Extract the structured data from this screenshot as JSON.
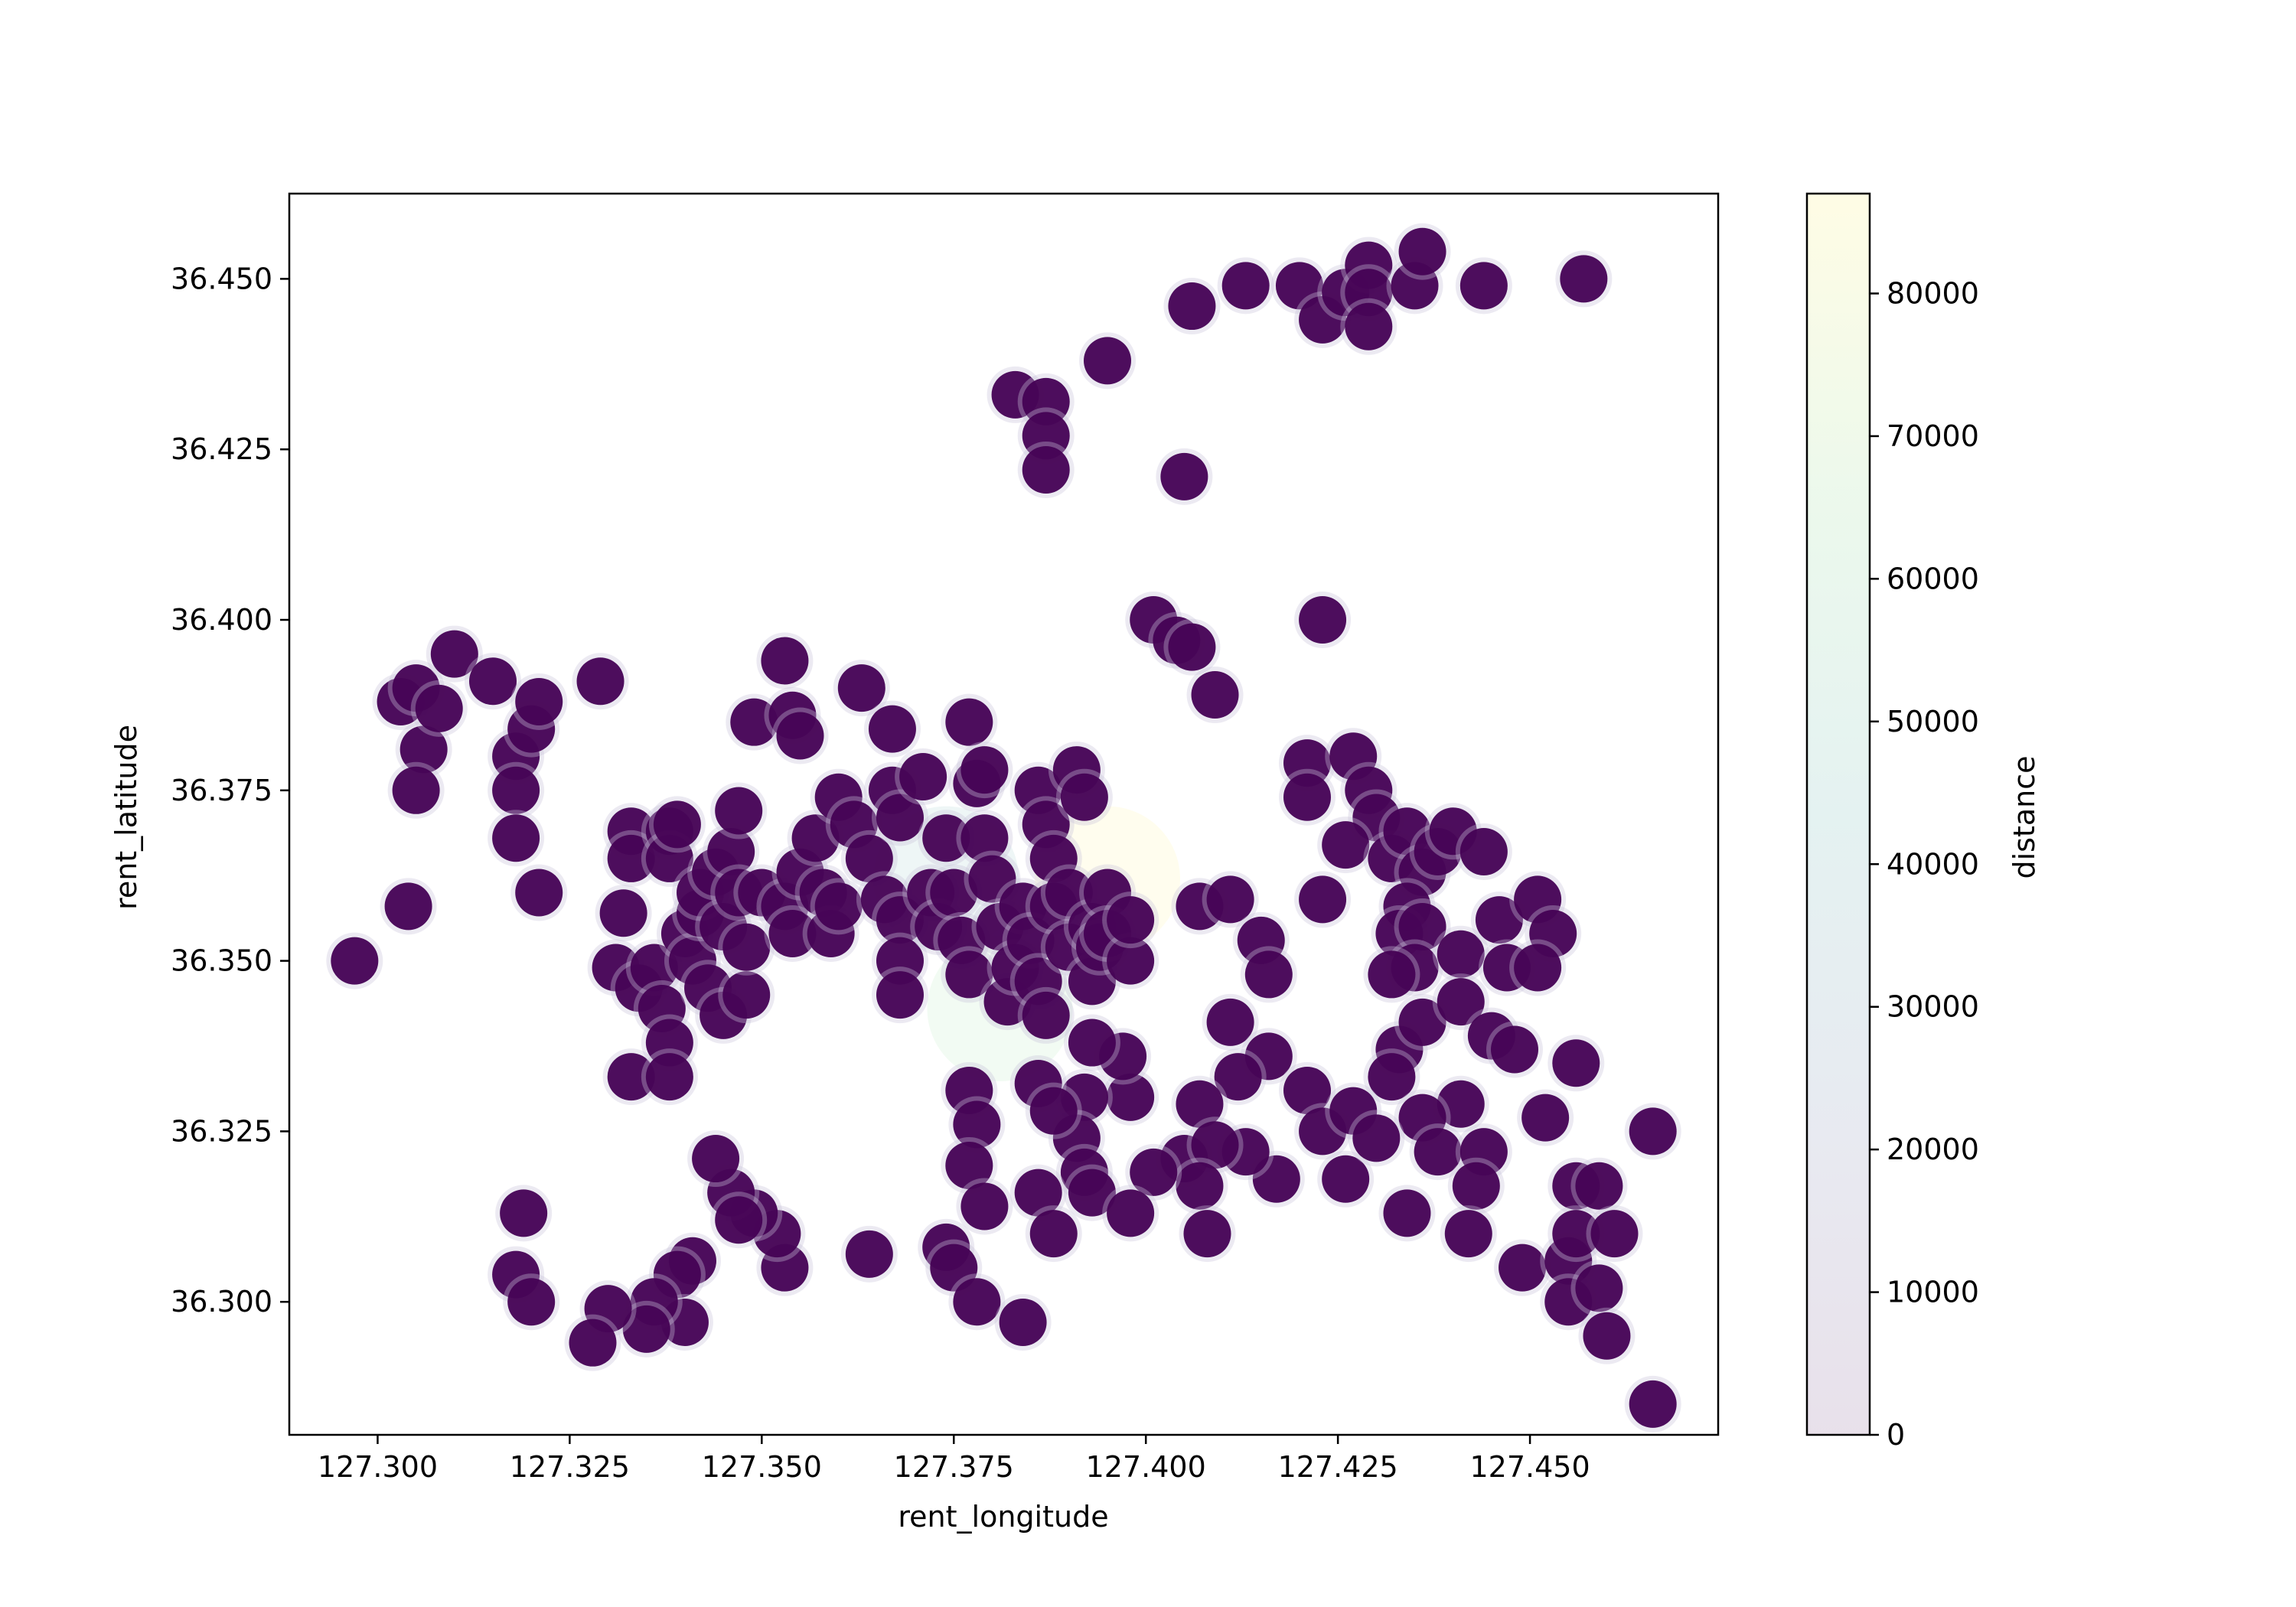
{
  "chart_data": {
    "type": "scatter",
    "title": "",
    "xlabel": "rent_longitude",
    "ylabel": "rent_latitude",
    "xlim": [
      127.2885,
      127.4745
    ],
    "ylim": [
      36.2805,
      36.4625
    ],
    "x_ticks": [
      "127.300",
      "127.325",
      "127.350",
      "127.375",
      "127.400",
      "127.425",
      "127.450"
    ],
    "y_ticks": [
      "36.300",
      "36.325",
      "36.350",
      "36.375",
      "36.400",
      "36.425",
      "36.450"
    ],
    "grid": false,
    "legend": "none",
    "marker_color": "#440154",
    "colorbar": {
      "label": "distance",
      "min": 0,
      "max": 87000,
      "ticks": [
        "0",
        "10000",
        "20000",
        "30000",
        "40000",
        "50000",
        "60000",
        "70000",
        "80000"
      ],
      "colors": [
        "#440154",
        "#3b528b",
        "#21918c",
        "#5ec962",
        "#fde725"
      ],
      "alpha": 0.1
    },
    "faint_markers": [
      {
        "x": 127.395,
        "y": 36.362,
        "distance": 86000
      },
      {
        "x": 127.374,
        "y": 36.362,
        "distance": 45000
      },
      {
        "x": 127.381,
        "y": 36.343,
        "distance": 33000
      }
    ],
    "points": [
      [
        127.297,
        36.35
      ],
      [
        127.304,
        36.358
      ],
      [
        127.303,
        36.388
      ],
      [
        127.305,
        36.39
      ],
      [
        127.306,
        36.381
      ],
      [
        127.305,
        36.375
      ],
      [
        127.308,
        36.387
      ],
      [
        127.31,
        36.395
      ],
      [
        127.315,
        36.391
      ],
      [
        127.318,
        36.38
      ],
      [
        127.318,
        36.375
      ],
      [
        127.318,
        36.368
      ],
      [
        127.32,
        36.384
      ],
      [
        127.321,
        36.388
      ],
      [
        127.321,
        36.36
      ],
      [
        127.319,
        36.313
      ],
      [
        127.318,
        36.304
      ],
      [
        127.32,
        36.3
      ],
      [
        127.329,
        36.391
      ],
      [
        127.332,
        36.357
      ],
      [
        127.331,
        36.349
      ],
      [
        127.333,
        36.369
      ],
      [
        127.333,
        36.365
      ],
      [
        127.333,
        36.333
      ],
      [
        127.334,
        36.346
      ],
      [
        127.336,
        36.349
      ],
      [
        127.337,
        36.343
      ],
      [
        127.338,
        36.369
      ],
      [
        127.338,
        36.365
      ],
      [
        127.339,
        36.37
      ],
      [
        127.338,
        36.338
      ],
      [
        127.338,
        36.333
      ],
      [
        127.34,
        36.354
      ],
      [
        127.341,
        36.35
      ],
      [
        127.342,
        36.357
      ],
      [
        127.342,
        36.36
      ],
      [
        127.343,
        36.346
      ],
      [
        127.344,
        36.363
      ],
      [
        127.345,
        36.342
      ],
      [
        127.345,
        36.355
      ],
      [
        127.346,
        36.366
      ],
      [
        127.347,
        36.36
      ],
      [
        127.348,
        36.345
      ],
      [
        127.348,
        36.352
      ],
      [
        127.347,
        36.372
      ],
      [
        127.349,
        36.385
      ],
      [
        127.35,
        36.36
      ],
      [
        127.353,
        36.394
      ],
      [
        127.354,
        36.386
      ],
      [
        127.355,
        36.383
      ],
      [
        127.353,
        36.358
      ],
      [
        127.354,
        36.354
      ],
      [
        127.355,
        36.363
      ],
      [
        127.357,
        36.368
      ],
      [
        127.358,
        36.36
      ],
      [
        127.359,
        36.354
      ],
      [
        127.36,
        36.374
      ],
      [
        127.36,
        36.358
      ],
      [
        127.362,
        36.37
      ],
      [
        127.363,
        36.39
      ],
      [
        127.364,
        36.365
      ],
      [
        127.366,
        36.359
      ],
      [
        127.367,
        36.384
      ],
      [
        127.367,
        36.375
      ],
      [
        127.368,
        36.371
      ],
      [
        127.368,
        36.356
      ],
      [
        127.368,
        36.35
      ],
      [
        127.368,
        36.345
      ],
      [
        127.371,
        36.377
      ],
      [
        127.372,
        36.36
      ],
      [
        127.373,
        36.355
      ],
      [
        127.374,
        36.368
      ],
      [
        127.375,
        36.36
      ],
      [
        127.376,
        36.353
      ],
      [
        127.377,
        36.348
      ],
      [
        127.377,
        36.385
      ],
      [
        127.378,
        36.376
      ],
      [
        127.379,
        36.368
      ],
      [
        127.379,
        36.378
      ],
      [
        127.38,
        36.362
      ],
      [
        127.381,
        36.355
      ],
      [
        127.382,
        36.344
      ],
      [
        127.383,
        36.349
      ],
      [
        127.384,
        36.358
      ],
      [
        127.385,
        36.353
      ],
      [
        127.386,
        36.347
      ],
      [
        127.386,
        36.375
      ],
      [
        127.387,
        36.37
      ],
      [
        127.387,
        36.342
      ],
      [
        127.388,
        36.365
      ],
      [
        127.388,
        36.358
      ],
      [
        127.39,
        36.36
      ],
      [
        127.39,
        36.352
      ],
      [
        127.391,
        36.378
      ],
      [
        127.392,
        36.374
      ],
      [
        127.393,
        36.355
      ],
      [
        127.393,
        36.347
      ],
      [
        127.394,
        36.352
      ],
      [
        127.395,
        36.36
      ],
      [
        127.395,
        36.354
      ],
      [
        127.398,
        36.35
      ],
      [
        127.398,
        36.356
      ],
      [
        127.383,
        36.433
      ],
      [
        127.387,
        36.432
      ],
      [
        127.387,
        36.427
      ],
      [
        127.387,
        36.422
      ],
      [
        127.395,
        36.438
      ],
      [
        127.405,
        36.421
      ],
      [
        127.401,
        36.4
      ],
      [
        127.404,
        36.397
      ],
      [
        127.406,
        36.396
      ],
      [
        127.409,
        36.389
      ],
      [
        127.406,
        36.446
      ],
      [
        127.413,
        36.449
      ],
      [
        127.42,
        36.449
      ],
      [
        127.423,
        36.444
      ],
      [
        127.426,
        36.448
      ],
      [
        127.429,
        36.452
      ],
      [
        127.429,
        36.448
      ],
      [
        127.429,
        36.443
      ],
      [
        127.435,
        36.449
      ],
      [
        127.436,
        36.454
      ],
      [
        127.444,
        36.449
      ],
      [
        127.457,
        36.45
      ],
      [
        127.423,
        36.4
      ],
      [
        127.421,
        36.379
      ],
      [
        127.421,
        36.374
      ],
      [
        127.427,
        36.38
      ],
      [
        127.429,
        36.375
      ],
      [
        127.43,
        36.371
      ],
      [
        127.426,
        36.367
      ],
      [
        127.432,
        36.365
      ],
      [
        127.434,
        36.369
      ],
      [
        127.436,
        36.363
      ],
      [
        127.438,
        36.366
      ],
      [
        127.44,
        36.369
      ],
      [
        127.444,
        36.366
      ],
      [
        127.434,
        36.358
      ],
      [
        127.433,
        36.354
      ],
      [
        127.436,
        36.355
      ],
      [
        127.435,
        36.349
      ],
      [
        127.432,
        36.348
      ],
      [
        127.441,
        36.351
      ],
      [
        127.446,
        36.356
      ],
      [
        127.451,
        36.359
      ],
      [
        127.453,
        36.354
      ],
      [
        127.447,
        36.349
      ],
      [
        127.451,
        36.349
      ],
      [
        127.423,
        36.359
      ],
      [
        127.407,
        36.358
      ],
      [
        127.411,
        36.359
      ],
      [
        127.415,
        36.353
      ],
      [
        127.416,
        36.348
      ],
      [
        127.411,
        36.341
      ],
      [
        127.416,
        36.336
      ],
      [
        127.412,
        36.333
      ],
      [
        127.433,
        36.337
      ],
      [
        127.436,
        36.341
      ],
      [
        127.432,
        36.333
      ],
      [
        127.441,
        36.344
      ],
      [
        127.445,
        36.339
      ],
      [
        127.448,
        36.337
      ],
      [
        127.456,
        36.335
      ],
      [
        127.452,
        36.327
      ],
      [
        127.441,
        36.329
      ],
      [
        127.436,
        36.327
      ],
      [
        127.438,
        36.322
      ],
      [
        127.444,
        36.322
      ],
      [
        127.443,
        36.317
      ],
      [
        127.434,
        36.313
      ],
      [
        127.442,
        36.31
      ],
      [
        127.421,
        36.331
      ],
      [
        127.423,
        36.325
      ],
      [
        127.427,
        36.328
      ],
      [
        127.426,
        36.318
      ],
      [
        127.43,
        36.324
      ],
      [
        127.417,
        36.318
      ],
      [
        127.413,
        36.322
      ],
      [
        127.407,
        36.329
      ],
      [
        127.405,
        36.321
      ],
      [
        127.409,
        36.323
      ],
      [
        127.407,
        36.317
      ],
      [
        127.408,
        36.31
      ],
      [
        127.401,
        36.319
      ],
      [
        127.398,
        36.33
      ],
      [
        127.397,
        36.336
      ],
      [
        127.393,
        36.338
      ],
      [
        127.392,
        36.33
      ],
      [
        127.391,
        36.324
      ],
      [
        127.392,
        36.319
      ],
      [
        127.386,
        36.332
      ],
      [
        127.388,
        36.328
      ],
      [
        127.386,
        36.316
      ],
      [
        127.388,
        36.31
      ],
      [
        127.393,
        36.316
      ],
      [
        127.398,
        36.313
      ],
      [
        127.377,
        36.331
      ],
      [
        127.378,
        36.326
      ],
      [
        127.377,
        36.32
      ],
      [
        127.379,
        36.314
      ],
      [
        127.374,
        36.308
      ],
      [
        127.375,
        36.305
      ],
      [
        127.378,
        36.3
      ],
      [
        127.384,
        36.297
      ],
      [
        127.364,
        36.307
      ],
      [
        127.353,
        36.305
      ],
      [
        127.352,
        36.31
      ],
      [
        127.349,
        36.313
      ],
      [
        127.346,
        36.316
      ],
      [
        127.347,
        36.312
      ],
      [
        127.344,
        36.321
      ],
      [
        127.341,
        36.306
      ],
      [
        127.339,
        36.304
      ],
      [
        127.34,
        36.297
      ],
      [
        127.336,
        36.3
      ],
      [
        127.335,
        36.296
      ],
      [
        127.33,
        36.299
      ],
      [
        127.328,
        36.294
      ],
      [
        127.449,
        36.305
      ],
      [
        127.455,
        36.306
      ],
      [
        127.455,
        36.3
      ],
      [
        127.456,
        36.317
      ],
      [
        127.459,
        36.317
      ],
      [
        127.456,
        36.31
      ],
      [
        127.459,
        36.302
      ],
      [
        127.461,
        36.31
      ],
      [
        127.46,
        36.295
      ],
      [
        127.466,
        36.325
      ],
      [
        127.466,
        36.285
      ]
    ]
  }
}
